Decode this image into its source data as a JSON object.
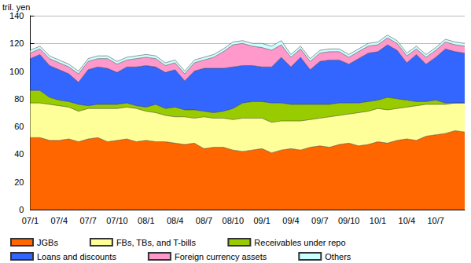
{
  "chart_data": {
    "type": "area",
    "stacked": true,
    "grid": true,
    "legend": "bottom",
    "ylabel": "tril. yen",
    "categories": [
      "07/1",
      null,
      null,
      "07/4",
      null,
      null,
      "07/7",
      null,
      null,
      "07/10",
      null,
      null,
      "08/1",
      null,
      null,
      "08/4",
      null,
      null,
      "08/7",
      null,
      null,
      "08/10",
      null,
      null,
      "09/1",
      null,
      null,
      "09/4",
      null,
      null,
      "09/7",
      null,
      null,
      "09/10",
      null,
      null,
      "10/1",
      null,
      null,
      "10/4",
      null,
      null,
      "10/7",
      null,
      null,
      null
    ],
    "ylim": [
      0,
      140
    ],
    "yticks": [
      0,
      20,
      40,
      60,
      80,
      100,
      120,
      140
    ],
    "series": [
      {
        "name": "JGBs",
        "color": "#ff6600",
        "values": [
          52,
          52,
          50,
          50,
          51,
          49,
          51,
          52,
          49,
          50,
          51,
          49,
          50,
          49,
          49,
          48,
          47,
          48,
          44,
          45,
          45,
          43,
          42,
          43,
          44,
          41,
          43,
          44,
          43,
          45,
          46,
          45,
          47,
          48,
          46,
          47,
          49,
          48,
          50,
          51,
          50,
          53,
          54,
          55,
          57,
          56
        ]
      },
      {
        "name": "FBs, TBs, and T-bills",
        "color": "#ffff99",
        "values": [
          25,
          25,
          26,
          25,
          23,
          22,
          22,
          21,
          24,
          23,
          23,
          24,
          21,
          21,
          19,
          19,
          20,
          18,
          23,
          21,
          21,
          22,
          24,
          23,
          22,
          22,
          21,
          20,
          21,
          20,
          20,
          22,
          21,
          21,
          24,
          24,
          24,
          24,
          23,
          23,
          25,
          23,
          22,
          21,
          20,
          21
        ]
      },
      {
        "name": "Receivables under repo",
        "color": "#99cc00",
        "values": [
          9,
          9,
          5,
          4,
          4,
          5,
          2,
          3,
          3,
          3,
          3,
          2,
          3,
          6,
          5,
          7,
          5,
          6,
          4,
          4,
          5,
          8,
          11,
          12,
          12,
          14,
          13,
          12,
          12,
          11,
          10,
          9,
          9,
          8,
          7,
          7,
          6,
          9,
          7,
          5,
          3,
          2,
          3,
          1,
          0,
          0
        ]
      },
      {
        "name": "Loans and discounts",
        "color": "#3366ff",
        "values": [
          23,
          26,
          23,
          22,
          20,
          16,
          26,
          27,
          26,
          23,
          26,
          28,
          30,
          27,
          26,
          27,
          21,
          28,
          31,
          32,
          31,
          30,
          27,
          26,
          25,
          26,
          33,
          27,
          34,
          25,
          31,
          32,
          31,
          28,
          32,
          35,
          35,
          38,
          35,
          27,
          34,
          27,
          31,
          39,
          37,
          36
        ]
      },
      {
        "name": "Foreign currency assets",
        "color": "#ff99cc",
        "values": [
          4,
          4,
          5,
          5,
          5,
          6,
          6,
          6,
          7,
          6,
          5,
          6,
          6,
          6,
          5,
          5,
          5,
          6,
          6,
          8,
          12,
          16,
          16,
          14,
          14,
          12,
          9,
          7,
          6,
          6,
          6,
          6,
          6,
          5,
          5,
          5,
          5,
          5,
          5,
          5,
          4,
          5,
          5,
          5,
          5,
          5
        ]
      },
      {
        "name": "Others",
        "color": "#ccffff",
        "values": [
          2,
          2,
          2,
          2,
          2,
          2,
          2,
          2,
          2,
          2,
          2,
          2,
          2,
          2,
          2,
          2,
          2,
          2,
          2,
          2,
          2,
          2,
          2,
          2,
          3,
          3,
          3,
          2,
          2,
          2,
          2,
          2,
          2,
          2,
          2,
          2,
          2,
          2,
          2,
          2,
          2,
          2,
          2,
          2,
          2,
          2
        ]
      }
    ]
  }
}
